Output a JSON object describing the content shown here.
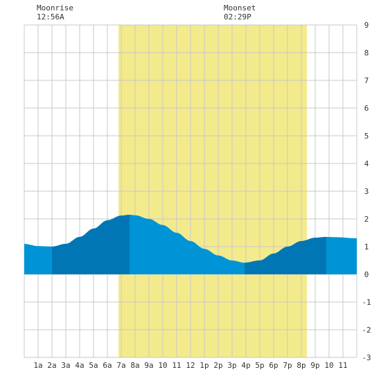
{
  "moonrise": {
    "label": "Moonrise",
    "time": "12:56A"
  },
  "moonset": {
    "label": "Moonset",
    "time": "02:29P"
  },
  "colors": {
    "daylight": "#f3ea8c",
    "tide_light": "#0094d6",
    "tide_dark": "#0077b4",
    "grid": "#c8c8c8",
    "background": "#ffffff"
  },
  "chart_data": {
    "type": "area",
    "title": "",
    "xlabel": "",
    "ylabel": "",
    "ylim": [
      -3,
      9
    ],
    "xlim": [
      0,
      24
    ],
    "grid": true,
    "x_tick_labels": [
      "1a",
      "2a",
      "3a",
      "4a",
      "5a",
      "6a",
      "7a",
      "8a",
      "9a",
      "10",
      "11",
      "12",
      "1p",
      "2p",
      "3p",
      "4p",
      "5p",
      "6p",
      "7p",
      "8p",
      "9p",
      "10",
      "11"
    ],
    "y_ticks": [
      -3,
      -2,
      -1,
      0,
      1,
      2,
      3,
      4,
      5,
      6,
      7,
      8,
      9
    ],
    "daylight_hours": [
      6.8,
      20.4
    ],
    "tide_extremes": [
      {
        "hour": 2.0,
        "height": 1.0,
        "type": "low"
      },
      {
        "hour": 7.6,
        "height": 2.15,
        "type": "high"
      },
      {
        "hour": 15.9,
        "height": 0.42,
        "type": "low"
      },
      {
        "hour": 21.8,
        "height": 1.35,
        "type": "high"
      }
    ],
    "series": [
      {
        "x": [
          0,
          1,
          2,
          3,
          4,
          5,
          6,
          7,
          7.6,
          8,
          9,
          10,
          11,
          12,
          13,
          14,
          15,
          15.9,
          17,
          18,
          19,
          20,
          21,
          21.8,
          22.5,
          24
        ],
        "values": [
          1.1,
          1.02,
          1.0,
          1.1,
          1.35,
          1.65,
          1.95,
          2.12,
          2.15,
          2.13,
          2.0,
          1.78,
          1.5,
          1.2,
          0.92,
          0.68,
          0.5,
          0.42,
          0.5,
          0.75,
          1.0,
          1.2,
          1.32,
          1.35,
          1.34,
          1.3
        ]
      }
    ],
    "dark_bands": [
      [
        2.0,
        7.6
      ],
      [
        15.9,
        21.8
      ]
    ]
  }
}
